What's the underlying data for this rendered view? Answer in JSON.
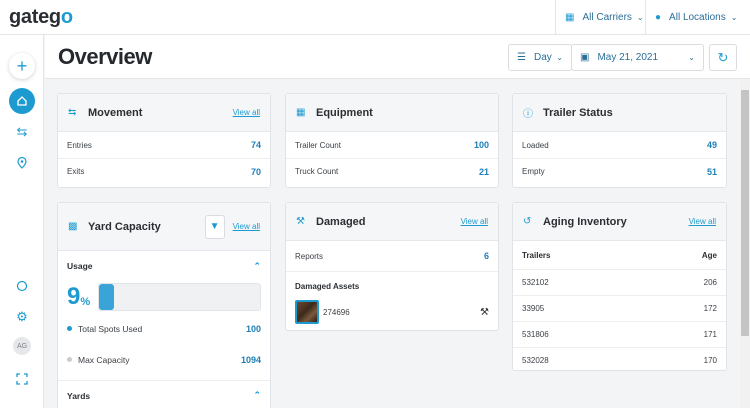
{
  "app": {
    "logo_main": "gateg",
    "logo_accent": "o"
  },
  "topbar": {
    "carriers": {
      "label": "All Carriers",
      "icon": "truck-icon"
    },
    "locations": {
      "label": "All Locations",
      "icon": "pin-icon"
    }
  },
  "header": {
    "title": "Overview",
    "period": "Day",
    "date": "May 21, 2021"
  },
  "movement": {
    "title": "Movement",
    "view_all": "View all",
    "rows": [
      {
        "label": "Entries",
        "value": "74"
      },
      {
        "label": "Exits",
        "value": "70"
      }
    ]
  },
  "equipment": {
    "title": "Equipment",
    "rows": [
      {
        "label": "Trailer Count",
        "value": "100"
      },
      {
        "label": "Truck Count",
        "value": "21"
      }
    ]
  },
  "trailer_status": {
    "title": "Trailer Status",
    "rows": [
      {
        "label": "Loaded",
        "value": "49"
      },
      {
        "label": "Empty",
        "value": "51"
      }
    ]
  },
  "yard_capacity": {
    "title": "Yard Capacity",
    "view_all": "View all",
    "usage_label": "Usage",
    "usage_pct": "9",
    "usage_pct_sign": "%",
    "usage_fraction": 0.09,
    "total_spots_label": "Total Spots Used",
    "total_spots_value": "100",
    "max_capacity_label": "Max Capacity",
    "max_capacity_value": "1094",
    "yards_label": "Yards"
  },
  "damaged": {
    "title": "Damaged",
    "view_all": "View all",
    "reports_label": "Reports",
    "reports_value": "6",
    "assets_label": "Damaged Assets",
    "asset_id": "274696"
  },
  "aging": {
    "title": "Aging Inventory",
    "view_all": "View all",
    "col_trailers": "Trailers",
    "col_age": "Age",
    "rows": [
      {
        "trailer": "532102",
        "age": "206"
      },
      {
        "trailer": "33905",
        "age": "172"
      },
      {
        "trailer": "531806",
        "age": "171"
      },
      {
        "trailer": "532028",
        "age": "170"
      }
    ]
  },
  "sidebar": {
    "avatar": "AG"
  },
  "colors": {
    "accent": "#1d9bd1",
    "value": "#1d7fb5",
    "max_dot": "#c8ccd0"
  }
}
